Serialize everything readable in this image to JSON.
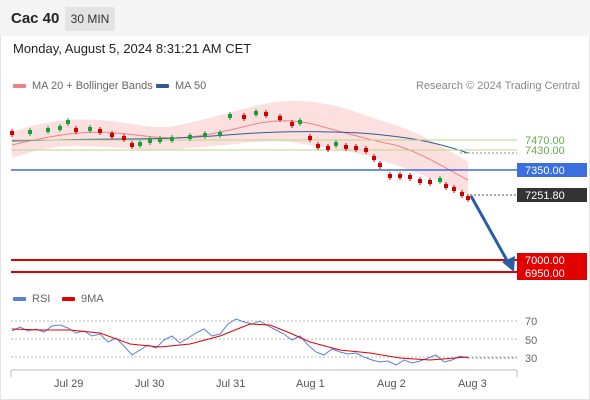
{
  "header": {
    "title": "Cac 40",
    "timeframe": "30 MIN"
  },
  "datetime": "Monday, August 5, 2024 8:31:21 AM CET",
  "legend": {
    "bollinger": {
      "label": "MA 20 + Bollinger Bands",
      "color": "#f08080"
    },
    "ma50": {
      "label": "MA 50",
      "color": "#2f5c91"
    },
    "rsi": {
      "label": "RSI",
      "color": "#5b7fd6"
    },
    "ma9": {
      "label": "9MA",
      "color": "#e00000"
    }
  },
  "copyright": "Research © 2024 Trading Central",
  "levels": {
    "r2": "7470.00",
    "r1": "7430.00",
    "pivot": "7350.00",
    "last": "7251.80",
    "s1": "7000.00",
    "s2": "6950.00"
  },
  "rsi_ticks": [
    "70",
    "50",
    "30"
  ],
  "x_labels": [
    "Jul 29",
    "Jul 30",
    "Jul 31",
    "Aug 1",
    "Aug 2",
    "Aug 3"
  ],
  "colors": {
    "up": "#1a9e3a",
    "down": "#cc0000",
    "pivot": "#3b6fe0",
    "support": "#e00000",
    "arrow": "#2a5da8"
  }
}
